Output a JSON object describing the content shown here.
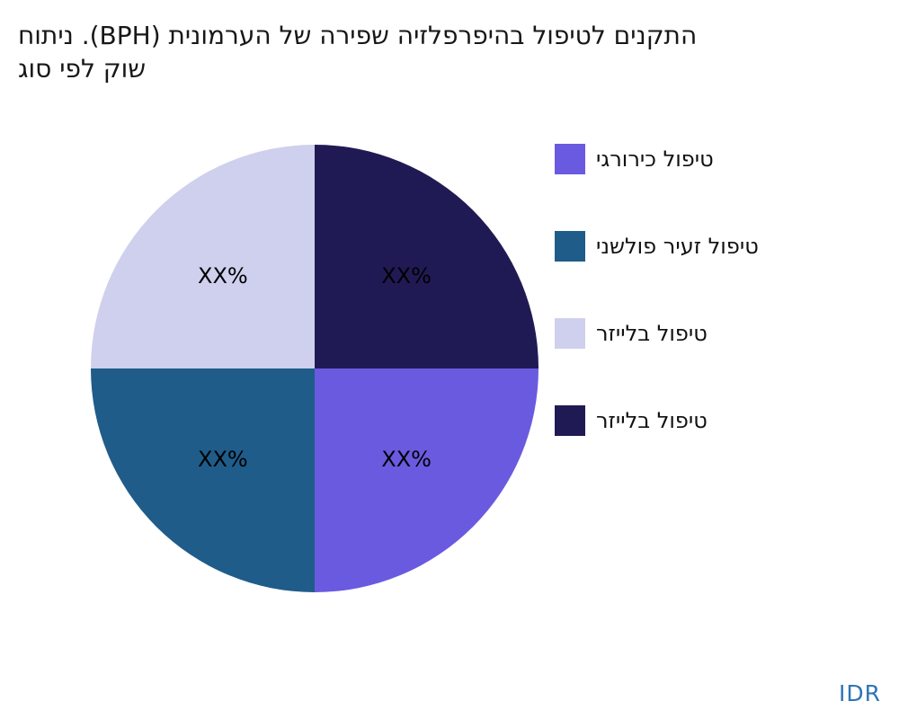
{
  "title_lines": [
    "התקנים לטיפול בהיפרפלזיה שפירה של הערמונית (BPH). ניתוח",
    "שוק לפי סוג"
  ],
  "chart_data": {
    "type": "pie",
    "title": "התקנים לטיפול בהיפרפלזיה שפירה של הערמונית (BPH). ניתוח שוק לפי סוג",
    "legend_position": "right",
    "direction": "clockwise",
    "start_angle_deg_from_top": 90,
    "value_labels_shown_as_placeholders": true,
    "slices": [
      {
        "label": "טיפול כירורגי",
        "value": 25,
        "display": "XX%",
        "color": "#6A5AE0"
      },
      {
        "label": "טיפול זעיר פולשני",
        "value": 25,
        "display": "XX%",
        "color": "#1F5C8A"
      },
      {
        "label": "טיפול בלייזר",
        "value": 25,
        "display": "XX%",
        "color": "#CFD0ED"
      },
      {
        "label": "טיפול בלייזר",
        "value": 25,
        "display": "XX%",
        "color": "#201A54"
      }
    ]
  },
  "footer": {
    "brand": "IDR",
    "brand_color": "#2E75B6"
  }
}
